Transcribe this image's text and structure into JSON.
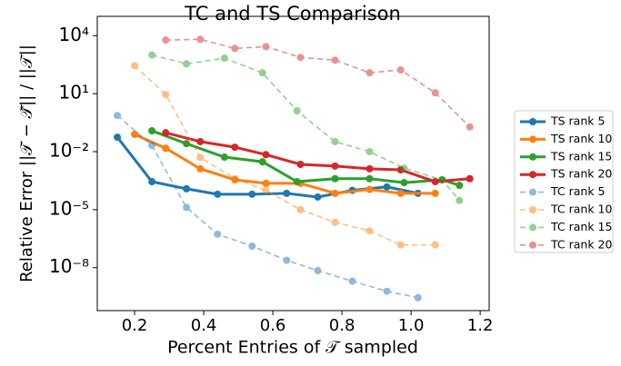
{
  "chart_data": {
    "type": "line",
    "title": "TC and TS Comparison",
    "xlabel": "Percent Entries of 𝒯 sampled",
    "ylabel": "Relative Error ||𝒯 − 𝒯̂|| / ||𝒯||",
    "yscale": "log",
    "legend_position": "right",
    "xlim": [
      0.092,
      1.226
    ],
    "ylim": [
      6e-11,
      100000
    ],
    "xticks": [
      0.2,
      0.4,
      0.6,
      0.8,
      {
        "value": 1,
        "label": "1.0"
      },
      1.2
    ],
    "yticks": [
      {
        "value": 1e-08,
        "label": "10⁻⁸"
      },
      {
        "value": 1e-05,
        "label": "10⁻⁵"
      },
      {
        "value": 0.01,
        "label": "10⁻²"
      },
      {
        "value": 10,
        "label": "10¹"
      },
      {
        "value": 10000,
        "label": "10⁴"
      }
    ],
    "series": [
      {
        "name": "TS rank 5",
        "color": "#1f77b4",
        "linestyle": "solid",
        "x": [
          0.15,
          0.25,
          0.35,
          0.44,
          0.54,
          0.64,
          0.73,
          0.83,
          0.93,
          1.02
        ],
        "values": [
          0.056,
          0.00028,
          0.00012,
          6.3e-05,
          6.3e-05,
          7e-05,
          4.5e-05,
          0.0001,
          0.00015,
          7e-05
        ]
      },
      {
        "name": "TS rank 10",
        "color": "#ff7f0e",
        "linestyle": "solid",
        "x": [
          0.2,
          0.29,
          0.39,
          0.49,
          0.58,
          0.68,
          0.78,
          0.88,
          0.97,
          1.07
        ],
        "values": [
          0.078,
          0.015,
          0.0013,
          0.00035,
          0.00023,
          0.00023,
          7e-05,
          0.00011,
          7e-05,
          7e-05
        ]
      },
      {
        "name": "TS rank 15",
        "color": "#2ca02c",
        "linestyle": "solid",
        "x": [
          0.25,
          0.35,
          0.46,
          0.57,
          0.67,
          0.78,
          0.88,
          0.98,
          1.09,
          1.14
        ],
        "values": [
          0.12,
          0.026,
          0.0052,
          0.003,
          0.00028,
          0.0004,
          0.0004,
          0.00025,
          0.00035,
          0.00018
        ]
      },
      {
        "name": "TS rank 20",
        "color": "#d62728",
        "linestyle": "solid",
        "x": [
          0.29,
          0.39,
          0.49,
          0.58,
          0.68,
          0.78,
          0.88,
          0.97,
          1.07,
          1.17
        ],
        "values": [
          0.095,
          0.033,
          0.017,
          0.007,
          0.0022,
          0.0018,
          0.0013,
          0.00115,
          0.00028,
          0.0004
        ]
      },
      {
        "name": "TC rank 5",
        "color": "#1f77b4",
        "linestyle": "dashed",
        "x": [
          0.15,
          0.25,
          0.35,
          0.44,
          0.54,
          0.64,
          0.73,
          0.83,
          0.93,
          1.02
        ],
        "values": [
          0.74,
          0.021,
          1.3e-05,
          5.4e-07,
          1.3e-07,
          2.4e-08,
          7e-09,
          2e-09,
          6e-10,
          2.8e-10
        ]
      },
      {
        "name": "TC rank 10",
        "color": "#ff7f0e",
        "linestyle": "dashed",
        "x": [
          0.2,
          0.29,
          0.39,
          0.49,
          0.58,
          0.68,
          0.78,
          0.88,
          0.97,
          1.07
        ],
        "values": [
          280,
          9,
          0.005,
          0.0004,
          0.0001,
          1e-05,
          2.2e-06,
          8e-07,
          1.5e-07,
          1.5e-07
        ]
      },
      {
        "name": "TC rank 15",
        "color": "#2ca02c",
        "linestyle": "dashed",
        "x": [
          0.25,
          0.35,
          0.46,
          0.57,
          0.67,
          0.78,
          0.88,
          0.98,
          1.09,
          1.14
        ],
        "values": [
          1000,
          350,
          680,
          120,
          1.3,
          0.033,
          0.01,
          0.0014,
          0.00035,
          3e-05
        ]
      },
      {
        "name": "TC rank 20",
        "color": "#d62728",
        "linestyle": "dashed",
        "x": [
          0.29,
          0.39,
          0.49,
          0.58,
          0.68,
          0.78,
          0.88,
          0.97,
          1.07,
          1.17
        ],
        "values": [
          5900,
          6500,
          2200,
          2700,
          750,
          540,
          120,
          170,
          11,
          0.19
        ]
      }
    ]
  }
}
